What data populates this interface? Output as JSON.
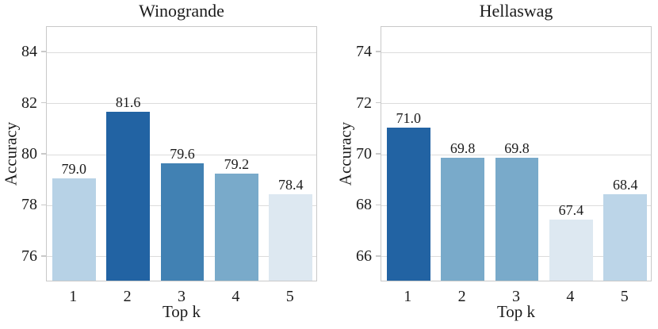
{
  "figure": {
    "background": "#ffffff",
    "text_color": "#1b1b1b",
    "grid_color": "#dcdcdc",
    "spine_color": "#c9c9c9"
  },
  "chart_data": [
    {
      "type": "bar",
      "title": "Winogrande",
      "xlabel": "Top k",
      "ylabel": "Accuracy",
      "categories": [
        "1",
        "2",
        "3",
        "4",
        "5"
      ],
      "values": [
        79.0,
        81.6,
        79.6,
        79.2,
        78.4
      ],
      "value_labels": [
        "79.0",
        "81.6",
        "79.6",
        "79.2",
        "78.4"
      ],
      "bar_colors": [
        "#b7d2e6",
        "#2263a3",
        "#4181b3",
        "#79aaca",
        "#dde8f1"
      ],
      "ylim": [
        75,
        85
      ],
      "yticks": [
        84,
        82,
        80,
        78,
        76
      ],
      "ytick_labels": [
        "84",
        "82",
        "80",
        "78",
        "76"
      ],
      "grid": true,
      "legend": "none"
    },
    {
      "type": "bar",
      "title": "Hellaswag",
      "xlabel": "Top k",
      "ylabel": "Accuracy",
      "categories": [
        "1",
        "2",
        "3",
        "4",
        "5"
      ],
      "values": [
        71.0,
        69.8,
        69.8,
        67.4,
        68.4
      ],
      "value_labels": [
        "71.0",
        "69.8",
        "69.8",
        "67.4",
        "68.4"
      ],
      "bar_colors": [
        "#2263a3",
        "#79aaca",
        "#79aaca",
        "#dde8f1",
        "#bcd5e8"
      ],
      "ylim": [
        65,
        75
      ],
      "yticks": [
        74,
        72,
        70,
        68,
        66
      ],
      "ytick_labels": [
        "74",
        "72",
        "70",
        "68",
        "66"
      ],
      "grid": true,
      "legend": "none"
    }
  ]
}
